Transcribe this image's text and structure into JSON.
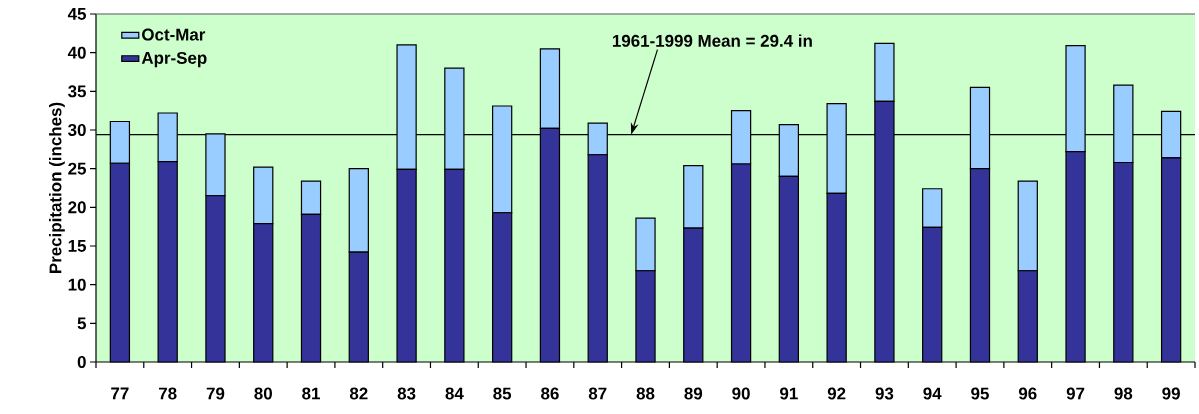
{
  "chart_data": {
    "type": "bar",
    "stacked": true,
    "ylabel": "Precipitation (inches)",
    "categories": [
      "77",
      "78",
      "79",
      "80",
      "81",
      "82",
      "83",
      "84",
      "85",
      "86",
      "87",
      "88",
      "89",
      "90",
      "91",
      "92",
      "93",
      "94",
      "95",
      "96",
      "97",
      "98",
      "99"
    ],
    "series": [
      {
        "name": "Apr-Sep",
        "color": "#333399",
        "values": [
          25.7,
          25.9,
          21.5,
          17.9,
          19.1,
          14.2,
          24.9,
          24.9,
          19.3,
          30.2,
          26.8,
          11.8,
          17.3,
          25.6,
          24.0,
          21.8,
          33.7,
          17.4,
          25.0,
          11.8,
          27.2,
          25.8,
          26.4
        ]
      },
      {
        "name": "Oct-Mar",
        "color": "#99ccff",
        "values": [
          5.4,
          6.3,
          8.0,
          7.3,
          4.3,
          10.8,
          16.1,
          13.1,
          13.8,
          10.3,
          4.1,
          6.8,
          8.1,
          6.9,
          6.7,
          11.6,
          7.5,
          5.0,
          10.5,
          11.6,
          13.7,
          10.0,
          6.0
        ]
      }
    ],
    "ylim": [
      0,
      45
    ],
    "yticks": [
      0,
      5,
      10,
      15,
      20,
      25,
      30,
      35,
      40,
      45
    ],
    "ref_lines": [
      {
        "axis": "y",
        "value": 29.4,
        "label": "1961-1999 Mean = 29.4 in"
      }
    ],
    "legend": "top left"
  }
}
